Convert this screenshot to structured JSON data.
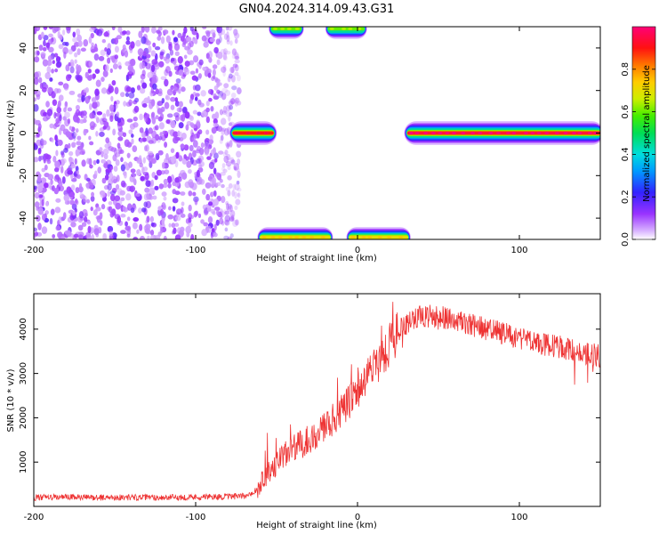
{
  "figure": {
    "title": "GN04.2024.314.09.43.G31"
  },
  "chart_data": [
    {
      "type": "heatmap",
      "xlabel": "Height of straight line (km)",
      "ylabel": "Frequency (Hz)",
      "xlim": [
        -200,
        150
      ],
      "ylim": [
        -50,
        50
      ],
      "xticks": [
        "-200",
        "-100",
        "0",
        "100"
      ],
      "yticks": [
        "40",
        "20",
        "0",
        "-20",
        "-40"
      ],
      "colorbar": {
        "label": "Normalized spectral amplitude",
        "range": [
          0,
          1
        ],
        "ticks": [
          "0.0",
          "0.2",
          "0.4",
          "0.6",
          "0.8"
        ],
        "colormap": "gnuplot rainbow (white-purple-blue-cyan-green-yellow-orange-red-magenta)"
      },
      "features": [
        {
          "name": "noise-region",
          "x_range": [
            -200,
            -73
          ],
          "freq_range": [
            -50,
            50
          ],
          "amplitude": "0.1-0.3 scattered"
        },
        {
          "name": "carrier-segment-left",
          "x_range": [
            -77,
            -52
          ],
          "freq": 0,
          "amplitude": 0.9
        },
        {
          "name": "carrier-segment-right",
          "x_range": [
            31,
            150
          ],
          "freq": 0,
          "amplitude": 0.95
        },
        {
          "name": "aliased-band-bottom-1",
          "x_range": [
            -60,
            -17
          ],
          "freq": -49,
          "amplitude": 0.7
        },
        {
          "name": "aliased-band-bottom-2",
          "x_range": [
            -5,
            31
          ],
          "freq": -49,
          "amplitude": 0.7
        },
        {
          "name": "aliased-band-top-1",
          "x_range": [
            -53,
            -35
          ],
          "freq": 49,
          "amplitude": 0.6
        },
        {
          "name": "aliased-band-top-2",
          "x_range": [
            -18,
            4
          ],
          "freq": 49,
          "amplitude": 0.6
        }
      ]
    },
    {
      "type": "line",
      "xlabel": "Height of straight line (km)",
      "ylabel": "SNR (10 * v/v)",
      "xlim": [
        -200,
        150
      ],
      "ylim": [
        0,
        4800
      ],
      "xticks": [
        "-200",
        "-100",
        "0",
        "100"
      ],
      "yticks": [
        "4000",
        "3000",
        "2000",
        "1000"
      ],
      "color": "#ee3333",
      "series": [
        {
          "x": [
            -200,
            -180,
            -160,
            -140,
            -120,
            -100,
            -80,
            -70,
            -62,
            -55,
            -45,
            -35,
            -25,
            -15,
            -5,
            5,
            15,
            25,
            35,
            45,
            55,
            65,
            75,
            85,
            95,
            105,
            115,
            125,
            135,
            150
          ],
          "y": [
            200,
            210,
            200,
            205,
            200,
            210,
            220,
            230,
            380,
            800,
            1150,
            1400,
            1650,
            1950,
            2350,
            2850,
            3400,
            3950,
            4250,
            4300,
            4250,
            4150,
            4050,
            3950,
            3850,
            3750,
            3650,
            3600,
            3500,
            3400
          ]
        }
      ]
    }
  ]
}
